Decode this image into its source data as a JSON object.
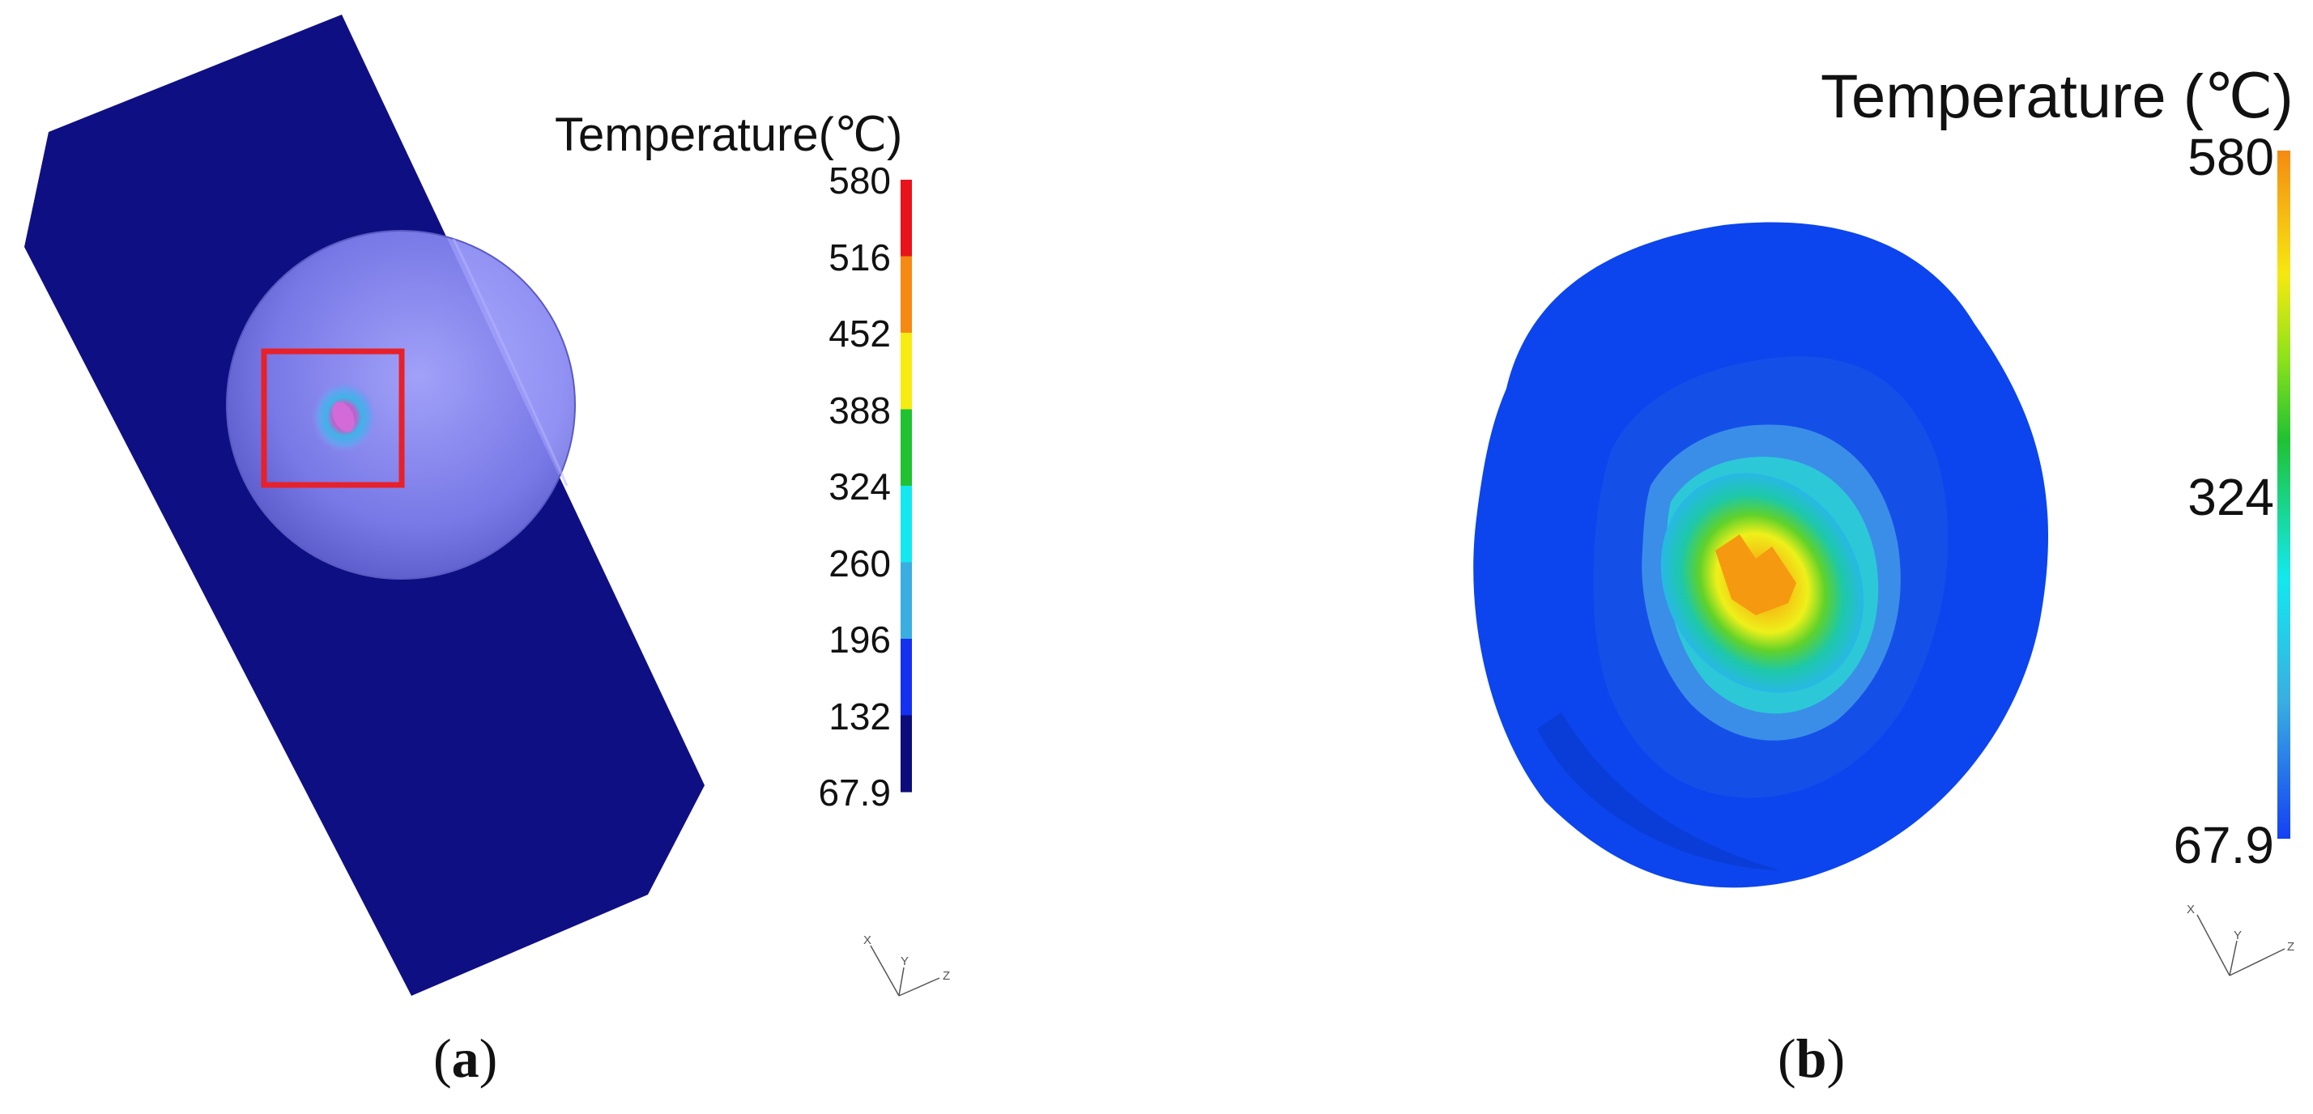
{
  "panels": {
    "a": {
      "legend_title": "Temperature(℃)",
      "ticks": [
        "580",
        "516",
        "452",
        "388",
        "324",
        "260",
        "196",
        "132",
        "67.9"
      ],
      "colorbar_colors": [
        "#e8131b",
        "#f58a12",
        "#f6ec12",
        "#20c232",
        "#14e8ee",
        "#3aaee0",
        "#1430f0",
        "#0c0c7a"
      ],
      "triad_labels": [
        "X",
        "Y",
        "Z"
      ],
      "caption_letter": "a"
    },
    "b": {
      "legend_title": "Temperature (℃)",
      "ticks": [
        "580",
        "324",
        "67.9"
      ],
      "triad_labels": [
        "X",
        "Y",
        "Z"
      ],
      "caption_letter": "b"
    }
  },
  "colors": {
    "plate": "#0f0f84",
    "highlight_box": "#e8202a",
    "sphere_outer": "#0c45ee"
  }
}
